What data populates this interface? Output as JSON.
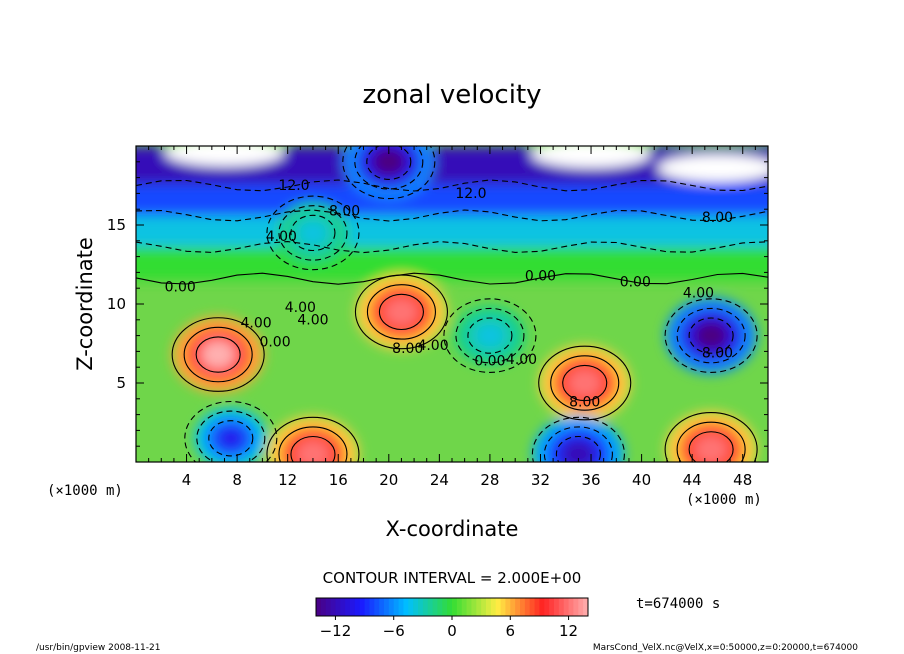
{
  "chart_data": {
    "type": "heatmap",
    "title": "zonal velocity",
    "xlabel": "X-coordinate",
    "ylabel": "Z-coordinate",
    "x_unit": "(×1000 m)",
    "y_unit": "(×1000 m)",
    "xlim": [
      0,
      50
    ],
    "ylim": [
      0,
      20
    ],
    "x_ticks": [
      "4",
      "8",
      "12",
      "16",
      "20",
      "24",
      "28",
      "32",
      "36",
      "40",
      "44",
      "48"
    ],
    "y_ticks": [
      "5",
      "10",
      "15"
    ],
    "contour_interval_text": "CONTOUR INTERVAL = 2.000E+00",
    "time_text": "t=674000 s",
    "colorbar": {
      "range": [
        -14,
        14
      ],
      "ticks": [
        "−12",
        "−6",
        "0",
        "6",
        "12"
      ],
      "colors": [
        "#4b0082",
        "#1a1aff",
        "#00bfff",
        "#33dd33",
        "#ffee44",
        "#ff2222",
        "#ffb0b0"
      ]
    },
    "contour_labels": [
      {
        "text": "12.0",
        "x": 12.5,
        "z": 17.2
      },
      {
        "text": "12.0",
        "x": 26.5,
        "z": 16.7
      },
      {
        "text": "8.00",
        "x": 16.5,
        "z": 15.6
      },
      {
        "text": "8.00",
        "x": 46.0,
        "z": 15.2
      },
      {
        "text": "4.00",
        "x": 11.5,
        "z": 14.0
      },
      {
        "text": "4.00",
        "x": 44.5,
        "z": 10.4
      },
      {
        "text": "0.00",
        "x": 3.5,
        "z": 10.8
      },
      {
        "text": "0.00",
        "x": 32.0,
        "z": 11.5
      },
      {
        "text": "0.00",
        "x": 39.5,
        "z": 11.1
      },
      {
        "text": "4.00",
        "x": 9.5,
        "z": 8.5
      },
      {
        "text": "0.00",
        "x": 11.0,
        "z": 7.3
      },
      {
        "text": "4.00",
        "x": 13.0,
        "z": 9.5
      },
      {
        "text": "4.00",
        "x": 14.0,
        "z": 8.7
      },
      {
        "text": "8.00",
        "x": 21.5,
        "z": 6.9
      },
      {
        "text": "4.00",
        "x": 23.5,
        "z": 7.1
      },
      {
        "text": "0.00",
        "x": 28.0,
        "z": 6.1
      },
      {
        "text": "4.00",
        "x": 30.5,
        "z": 6.2
      },
      {
        "text": "8.00",
        "x": 35.5,
        "z": 3.5
      },
      {
        "text": "8.00",
        "x": 46.0,
        "z": 6.6
      }
    ],
    "field_features": [
      {
        "kind": "max",
        "x": 6.5,
        "z": 6.8,
        "value": 14
      },
      {
        "kind": "max",
        "x": 21.0,
        "z": 9.5,
        "value": 12
      },
      {
        "kind": "max",
        "x": 35.5,
        "z": 5.0,
        "value": 12
      },
      {
        "kind": "max",
        "x": 14.0,
        "z": 0.5,
        "value": 12
      },
      {
        "kind": "max",
        "x": 45.5,
        "z": 0.8,
        "value": 12
      },
      {
        "kind": "min",
        "x": 45.5,
        "z": 8.0,
        "value": -14
      },
      {
        "kind": "min",
        "x": 28.0,
        "z": 8.0,
        "value": -4
      },
      {
        "kind": "min",
        "x": 35.0,
        "z": 0.5,
        "value": -12
      },
      {
        "kind": "min",
        "x": 7.5,
        "z": 1.5,
        "value": -10
      },
      {
        "kind": "min",
        "x": 20.0,
        "z": 19.0,
        "value": -14
      },
      {
        "kind": "min",
        "x": 14.0,
        "z": 14.5,
        "value": -4
      }
    ]
  },
  "footer": {
    "left": "/usr/bin/gpview  2008-11-21",
    "right": "MarsCond_VelX.nc@VelX,x=0:50000,z=0:20000,t=674000"
  },
  "colors": {
    "frame": "#000000",
    "text": "#000000"
  }
}
